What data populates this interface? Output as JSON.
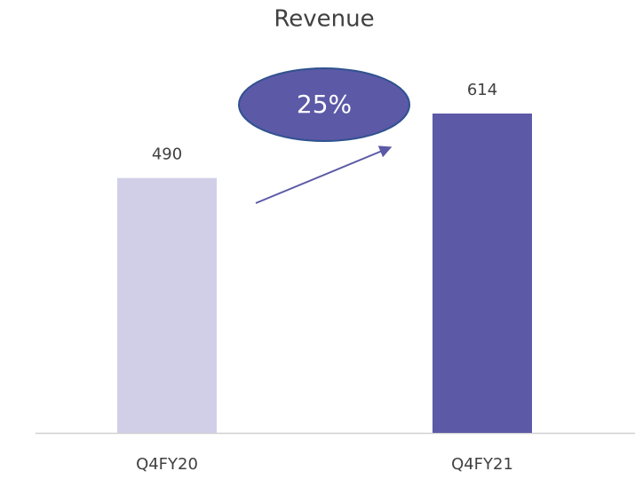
{
  "chart_data": {
    "type": "bar",
    "title": "Revenue",
    "categories": [
      "Q4FY20",
      "Q4FY21"
    ],
    "values": [
      490,
      614
    ],
    "colors": [
      "#d1cfe8",
      "#5c59a7"
    ],
    "annotation": "25%"
  }
}
